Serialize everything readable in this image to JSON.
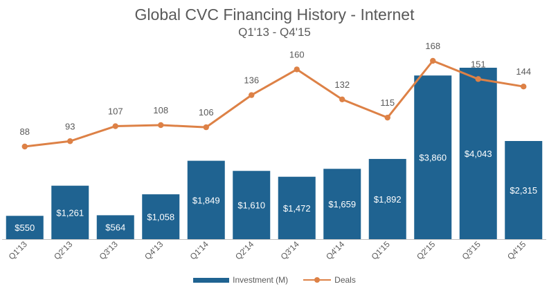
{
  "chart_data": {
    "type": "bar",
    "title": "Global CVC Financing History - Internet",
    "subtitle": "Q1'13 - Q4'15",
    "categories": [
      "Q1'13",
      "Q2'13",
      "Q3'13",
      "Q4'13",
      "Q1'14",
      "Q2'14",
      "Q3'14",
      "Q4'14",
      "Q1'15",
      "Q2'15",
      "Q3'15",
      "Q4'15"
    ],
    "series": [
      {
        "name": "Investment (M)",
        "type": "bar",
        "values": [
          550,
          1261,
          564,
          1058,
          1849,
          1610,
          1472,
          1659,
          1892,
          3860,
          4043,
          2315
        ],
        "labels": [
          "$550",
          "$1,261",
          "$564",
          "$1,058",
          "$1,849",
          "$1,610",
          "$1,472",
          "$1,659",
          "$1,892",
          "$3,860",
          "$4,043",
          "$2,315"
        ]
      },
      {
        "name": "Deals",
        "type": "line",
        "values": [
          88,
          93,
          107,
          108,
          106,
          136,
          160,
          132,
          115,
          168,
          151,
          144
        ],
        "labels": [
          "88",
          "93",
          "107",
          "108",
          "106",
          "136",
          "160",
          "132",
          "115",
          "168",
          "151",
          "144"
        ]
      }
    ],
    "legend_position": "bottom",
    "grid": false,
    "colors": {
      "bar": "#1f6391",
      "line": "#dd8146",
      "text": "#595959",
      "axis": "#bfbfbf"
    }
  }
}
